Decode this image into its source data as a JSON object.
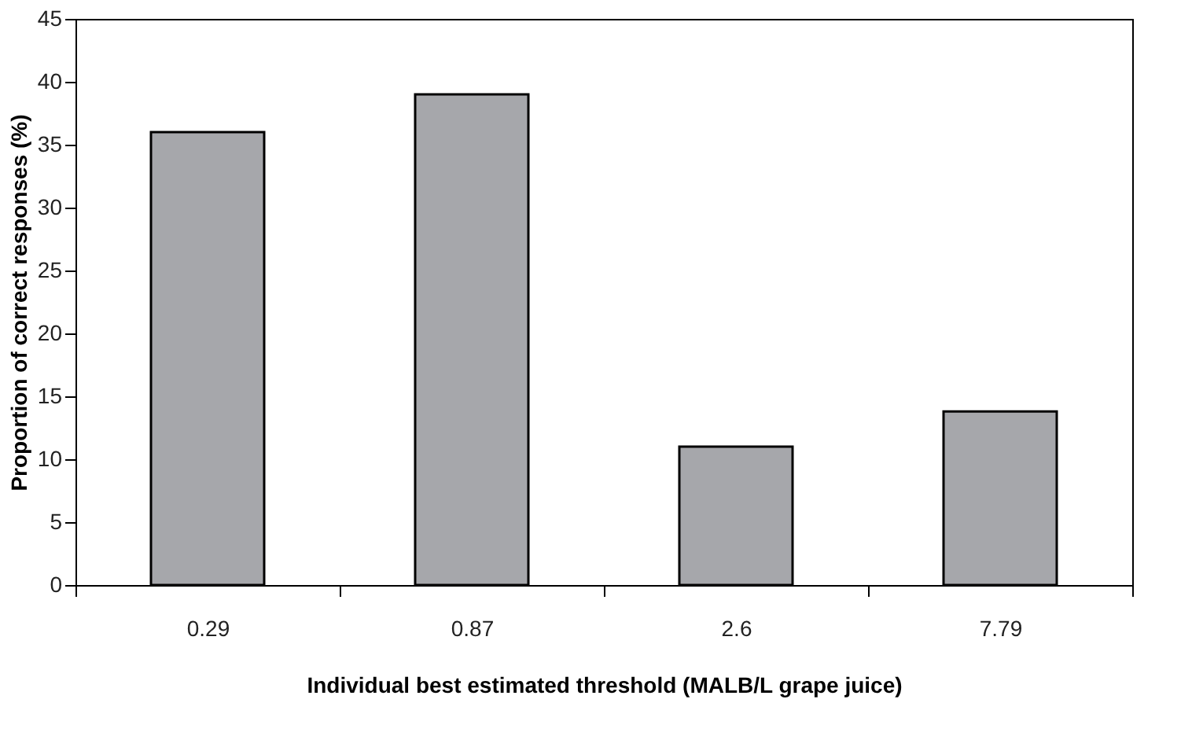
{
  "chart_data": {
    "type": "bar",
    "xlabel": "Individual best estimated threshold (MALB/L grape juice)",
    "ylabel": "Proportion of correct responses (%)",
    "categories": [
      "0.29",
      "0.87",
      "2.6",
      "7.79"
    ],
    "values": [
      36,
      39,
      11,
      13.8
    ],
    "color": "#a6a7ab",
    "ylim": [
      0,
      45
    ],
    "yticks": [
      0,
      5,
      10,
      15,
      20,
      25,
      30,
      35,
      40,
      45
    ],
    "grid": false
  }
}
